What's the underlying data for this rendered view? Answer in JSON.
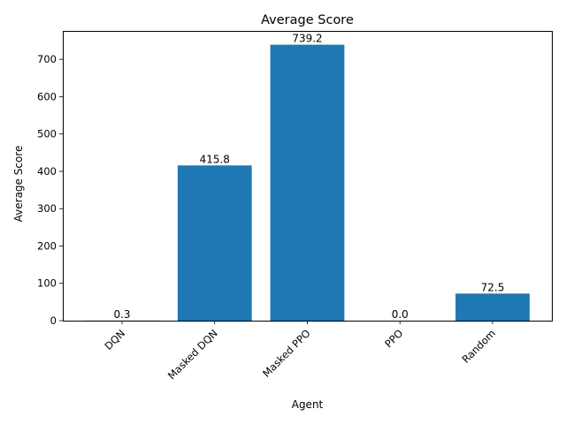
{
  "chart_data": {
    "type": "bar",
    "title": "Average Score",
    "xlabel": "Agent",
    "ylabel": "Average Score",
    "categories": [
      "DQN",
      "Masked DQN",
      "Masked PPO",
      "PPO",
      "Random"
    ],
    "values": [
      0.3,
      415.8,
      739.2,
      0.0,
      72.5
    ],
    "data_labels": [
      "0.3",
      "415.8",
      "739.2",
      "0.0",
      "72.5"
    ],
    "yticks": [
      0,
      100,
      200,
      300,
      400,
      500,
      600,
      700
    ],
    "ylim": [
      0,
      776.16
    ],
    "grid": false,
    "bar_color": "#1f77b4"
  }
}
